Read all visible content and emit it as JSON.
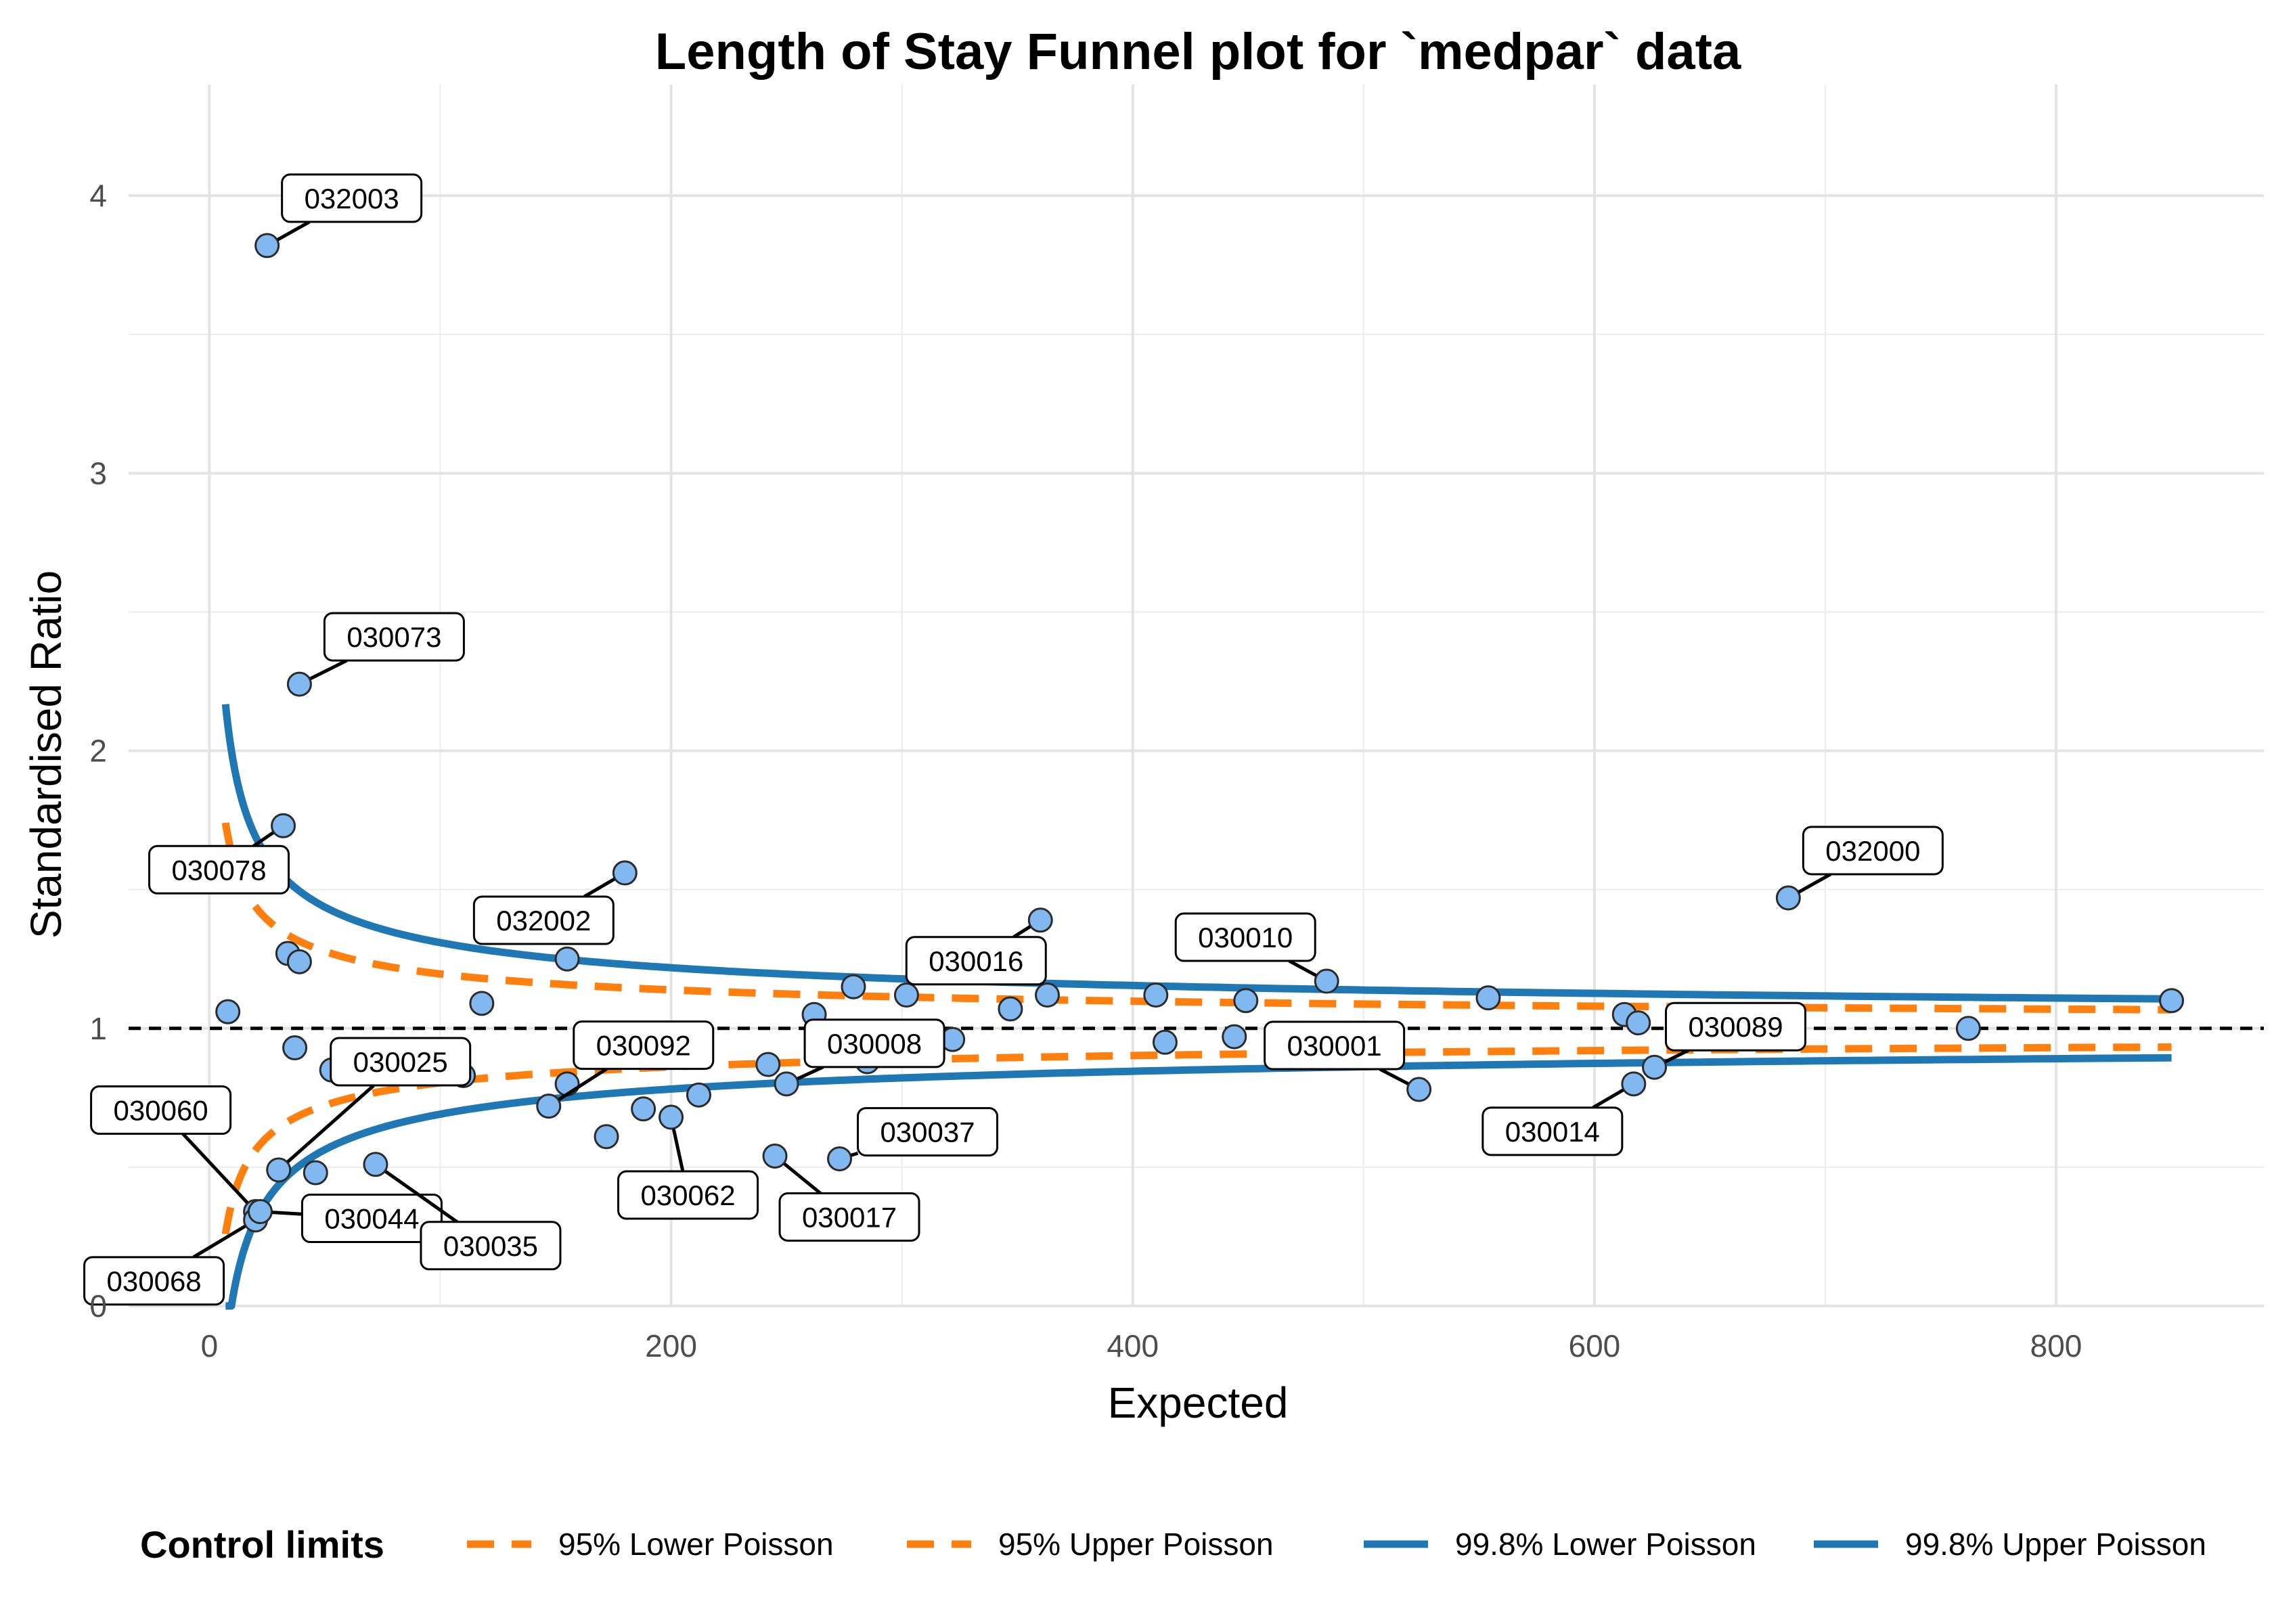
{
  "chart_data": {
    "type": "scatter",
    "title": "Length of Stay Funnel plot for `medpar` data",
    "xlabel": "Expected",
    "ylabel": "Standardised Ratio",
    "xlim": [
      -35,
      890
    ],
    "ylim": [
      0,
      4.4
    ],
    "x_ticks": [
      0,
      200,
      400,
      600,
      800
    ],
    "y_ticks": [
      0,
      1,
      2,
      3,
      4
    ],
    "grid": true,
    "reference_line": 1,
    "legend": {
      "title": "Control limits",
      "position": "bottom",
      "entries": [
        {
          "label": "95% Lower Poisson",
          "color": "#ff7f0e",
          "style": "dashed"
        },
        {
          "label": "95% Upper Poisson",
          "color": "#ff7f0e",
          "style": "dashed"
        },
        {
          "label": "99.8% Lower Poisson",
          "color": "#1f77b4",
          "style": "solid"
        },
        {
          "label": "99.8% Upper Poisson",
          "color": "#1f77b4",
          "style": "solid"
        }
      ]
    },
    "limit_curves": {
      "x_min": 7,
      "x_max": 850,
      "z95": 1.96,
      "z998": 3.09
    },
    "points": [
      {
        "x": 25,
        "y": 3.82,
        "label": "032003"
      },
      {
        "x": 39,
        "y": 2.24,
        "label": "030073"
      },
      {
        "x": 32,
        "y": 1.73,
        "label": "030078"
      },
      {
        "x": 180,
        "y": 1.56,
        "label": "032002"
      },
      {
        "x": 360,
        "y": 1.39,
        "label": "030016"
      },
      {
        "x": 484,
        "y": 1.17,
        "label": "030010"
      },
      {
        "x": 684,
        "y": 1.47,
        "label": "032000"
      },
      {
        "x": 524,
        "y": 0.78,
        "label": "030001"
      },
      {
        "x": 626,
        "y": 0.86,
        "label": "030089"
      },
      {
        "x": 617,
        "y": 0.8,
        "label": "030014"
      },
      {
        "x": 30,
        "y": 0.49,
        "label": "030025"
      },
      {
        "x": 20,
        "y": 0.34,
        "label": "030060"
      },
      {
        "x": 20,
        "y": 0.31,
        "label": "030068"
      },
      {
        "x": 22,
        "y": 0.34,
        "label": "030044"
      },
      {
        "x": 72,
        "y": 0.51,
        "label": "030035"
      },
      {
        "x": 147,
        "y": 0.72,
        "label": "030092"
      },
      {
        "x": 250,
        "y": 0.8,
        "label": "030008"
      },
      {
        "x": 200,
        "y": 0.68,
        "label": "030062"
      },
      {
        "x": 245,
        "y": 0.54,
        "label": "030017"
      },
      {
        "x": 273,
        "y": 0.53,
        "label": "030037"
      },
      {
        "x": 8,
        "y": 1.06
      },
      {
        "x": 34,
        "y": 1.27
      },
      {
        "x": 39,
        "y": 1.24
      },
      {
        "x": 37,
        "y": 0.93
      },
      {
        "x": 46,
        "y": 0.48
      },
      {
        "x": 53,
        "y": 0.85
      },
      {
        "x": 110,
        "y": 0.83
      },
      {
        "x": 118,
        "y": 1.09
      },
      {
        "x": 155,
        "y": 0.8
      },
      {
        "x": 155,
        "y": 1.25
      },
      {
        "x": 172,
        "y": 0.61
      },
      {
        "x": 188,
        "y": 0.71
      },
      {
        "x": 212,
        "y": 0.76
      },
      {
        "x": 242,
        "y": 0.87
      },
      {
        "x": 262,
        "y": 1.05
      },
      {
        "x": 279,
        "y": 1.15
      },
      {
        "x": 285,
        "y": 0.88
      },
      {
        "x": 302,
        "y": 1.12
      },
      {
        "x": 322,
        "y": 0.96
      },
      {
        "x": 347,
        "y": 1.07
      },
      {
        "x": 363,
        "y": 1.12
      },
      {
        "x": 410,
        "y": 1.12
      },
      {
        "x": 414,
        "y": 0.95
      },
      {
        "x": 444,
        "y": 0.97
      },
      {
        "x": 449,
        "y": 1.1
      },
      {
        "x": 554,
        "y": 1.11
      },
      {
        "x": 613,
        "y": 1.05
      },
      {
        "x": 619,
        "y": 1.02
      },
      {
        "x": 762,
        "y": 1.0
      },
      {
        "x": 850,
        "y": 1.1
      }
    ]
  }
}
